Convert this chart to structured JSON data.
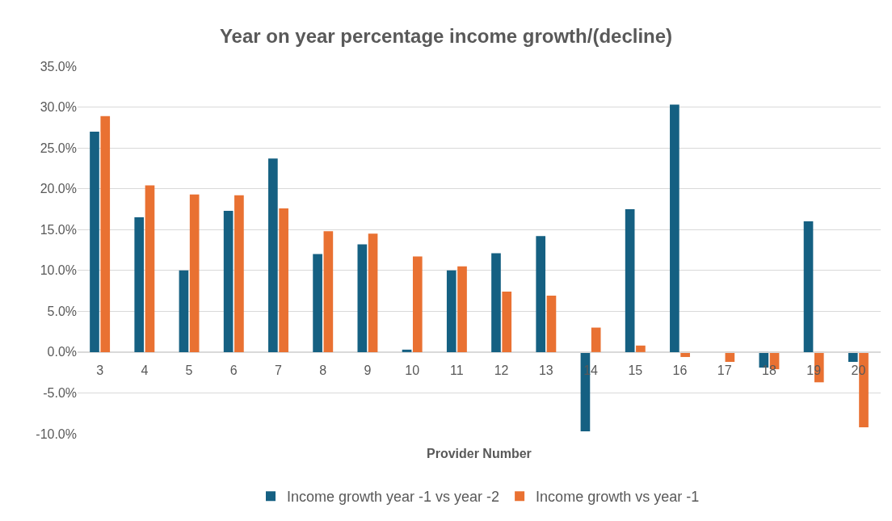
{
  "chart_data": {
    "type": "bar",
    "title": "Year on year percentage income growth/(decline)",
    "xlabel": "Provider Number",
    "categories": [
      "3",
      "4",
      "5",
      "6",
      "7",
      "8",
      "9",
      "10",
      "11",
      "12",
      "13",
      "14",
      "15",
      "16",
      "17",
      "18",
      "19",
      "20"
    ],
    "series": [
      {
        "name": "Income growth year -1 vs year -2",
        "color": "#156082",
        "values": [
          27.0,
          16.5,
          10.0,
          17.3,
          23.7,
          12.0,
          13.2,
          0.3,
          10.0,
          12.1,
          14.2,
          -9.7,
          17.5,
          30.3,
          0,
          -1.9,
          16.0,
          -1.2
        ]
      },
      {
        "name": "Income growth vs year -1",
        "color": "#e97132",
        "values": [
          28.9,
          20.4,
          19.3,
          19.2,
          17.6,
          14.8,
          14.5,
          11.7,
          10.5,
          7.4,
          6.9,
          3.0,
          0.8,
          -0.6,
          -1.2,
          -2.1,
          -3.7,
          -9.2
        ]
      }
    ],
    "ylim": [
      -10,
      35
    ],
    "yticks": [
      {
        "value": -10,
        "label": "-10.0%"
      },
      {
        "value": -5,
        "label": "-5.0%"
      },
      {
        "value": 0,
        "label": "0.0%"
      },
      {
        "value": 5,
        "label": "5.0%"
      },
      {
        "value": 10,
        "label": "10.0%"
      },
      {
        "value": 15,
        "label": "15.0%"
      },
      {
        "value": 20,
        "label": "20.0%"
      },
      {
        "value": 25,
        "label": "25.0%"
      },
      {
        "value": 30,
        "label": "30.0%"
      },
      {
        "value": 35,
        "label": "35.0%"
      }
    ],
    "grid": "y",
    "legend": "bottom"
  }
}
